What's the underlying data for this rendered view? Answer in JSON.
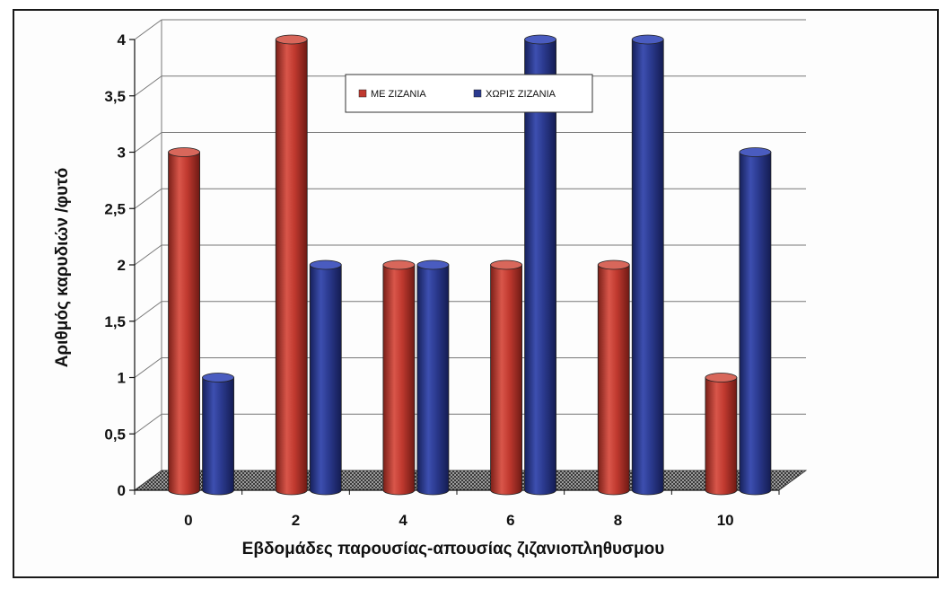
{
  "chart_data": {
    "type": "bar",
    "title": "",
    "xlabel": "Εβδομάδες παρουσίας-απουσίας ζιζανιοπληθυσμου",
    "ylabel": "Αριθμός καρυδιών /φυτό",
    "categories": [
      "0",
      "2",
      "4",
      "6",
      "8",
      "10"
    ],
    "series": [
      {
        "name": "ΜΕ ΖΙΖΑΝΙΑ",
        "values": [
          3,
          4,
          2,
          2,
          2,
          1
        ],
        "color": "#c0392f"
      },
      {
        "name": "ΧΩΡΙΣ ΖΙΖΑΝΙΑ",
        "values": [
          1,
          2,
          2,
          4,
          4,
          3
        ],
        "color": "#2b3a8f"
      }
    ],
    "ylim": [
      0,
      4
    ],
    "yticks": [
      "0",
      "0,5",
      "1",
      "1,5",
      "2",
      "2,5",
      "3",
      "3,5",
      "4"
    ],
    "grid": true,
    "legend_position": "top-center",
    "style": "3d-cylinder"
  }
}
